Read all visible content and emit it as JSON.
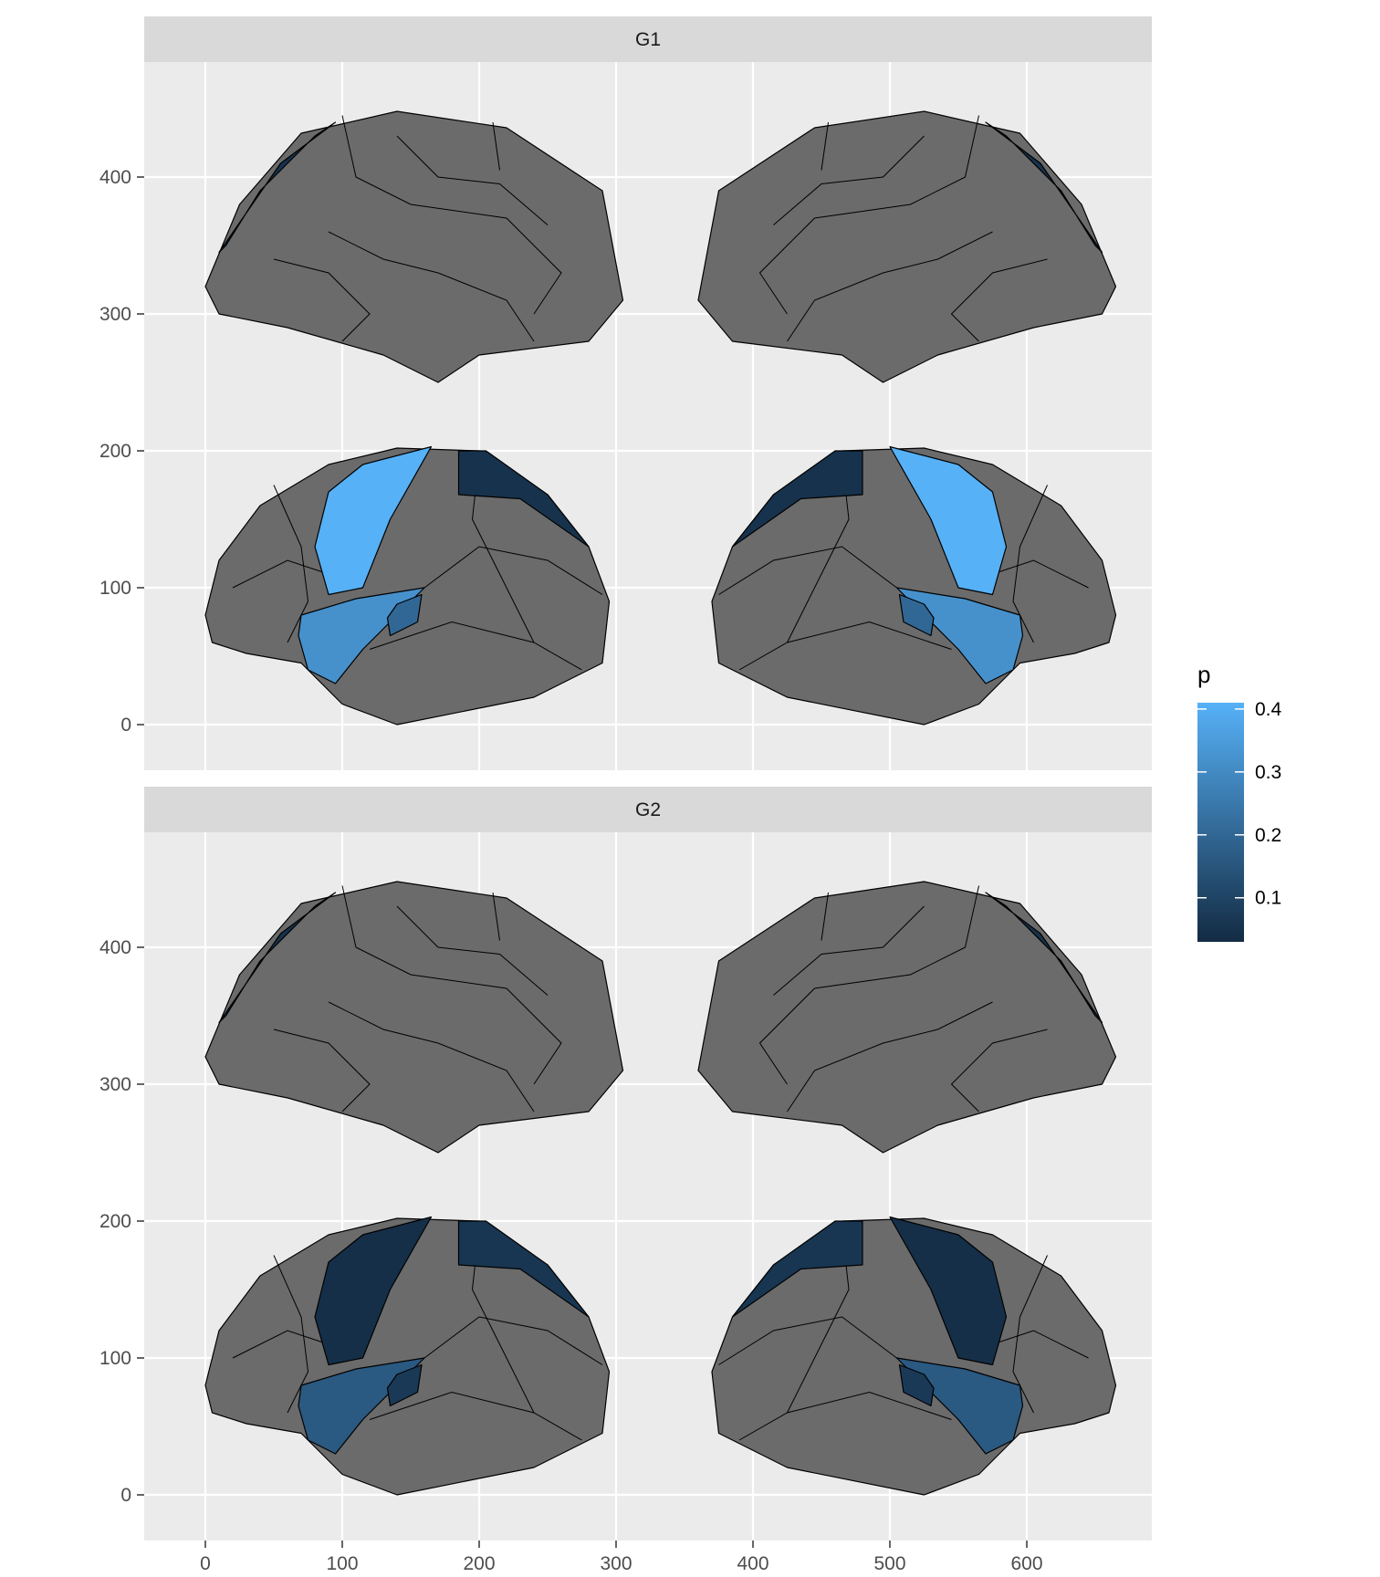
{
  "chart_data": {
    "type": "choropleth-facet",
    "facets": [
      "G1",
      "G2"
    ],
    "x_ticks": [
      0,
      100,
      200,
      300,
      400,
      500,
      600
    ],
    "y_ticks": [
      0,
      100,
      200,
      300,
      400
    ],
    "xlim": [
      -45,
      690
    ],
    "ylim": [
      -35,
      485
    ],
    "grid": true,
    "legend": {
      "title": "p",
      "position": "right",
      "labels": [
        "0.4",
        "0.3",
        "0.2",
        "0.1"
      ],
      "values": [
        0.4,
        0.3,
        0.2,
        0.1
      ],
      "range": [
        0.03,
        0.41
      ],
      "color_low": "#132B43",
      "color_high": "#56B1F7"
    },
    "na_color": "#6b6b6b",
    "regions": [
      {
        "name": "precentral (left)",
        "values": [
          0.41,
          0.04
        ]
      },
      {
        "name": "superior parietal (left)",
        "values": [
          0.05,
          0.06
        ]
      },
      {
        "name": "superior temporal (left)",
        "values": [
          0.32,
          0.16
        ]
      },
      {
        "name": "transverse temporal (left)",
        "values": [
          0.2,
          0.07
        ]
      },
      {
        "name": "superior parietal (right)",
        "values": [
          0.05,
          0.06
        ]
      },
      {
        "name": "precentral (right)",
        "values": [
          0.41,
          0.04
        ]
      },
      {
        "name": "superior temporal (right)",
        "values": [
          0.32,
          0.16
        ]
      },
      {
        "name": "transverse temporal (right)",
        "values": [
          0.2,
          0.07
        ]
      },
      {
        "name": "superior parietal medial (left)",
        "values": [
          0.05,
          0.05
        ]
      },
      {
        "name": "superior parietal medial (right)",
        "values": [
          0.05,
          0.05
        ]
      }
    ]
  }
}
